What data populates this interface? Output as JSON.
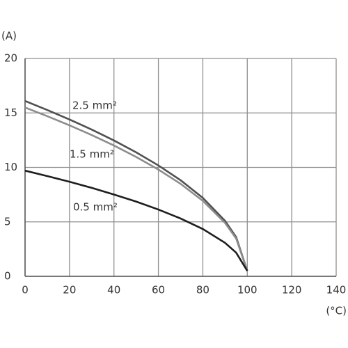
{
  "chart_data": {
    "type": "line",
    "y_label": "(A)",
    "x_label": "(°C)",
    "x": [
      0,
      10,
      20,
      30,
      40,
      50,
      60,
      70,
      80,
      90,
      95,
      100
    ],
    "series": [
      {
        "name": "2.5 mm²",
        "color": "#505050",
        "values": [
          16.1,
          15.27,
          14.4,
          13.47,
          12.47,
          11.38,
          10.18,
          8.82,
          7.2,
          5.09,
          3.6,
          0.5
        ]
      },
      {
        "name": "1.5 mm²",
        "color": "#8c8c8c",
        "values": [
          15.5,
          14.7,
          13.86,
          12.97,
          12.01,
          10.96,
          9.8,
          8.49,
          6.93,
          4.9,
          3.47,
          0.5
        ]
      },
      {
        "name": "0.5 mm²",
        "color": "#1e1e1e",
        "values": [
          9.7,
          9.2,
          8.68,
          8.12,
          7.51,
          6.86,
          6.13,
          5.31,
          4.34,
          3.07,
          2.17,
          0.5
        ]
      }
    ],
    "xlim": [
      0,
      140
    ],
    "xticks": [
      0,
      20,
      40,
      60,
      80,
      100,
      120,
      140
    ],
    "ylim": [
      0,
      20
    ],
    "yticks": [
      0,
      5,
      10,
      15,
      20
    ],
    "grid": true
  }
}
